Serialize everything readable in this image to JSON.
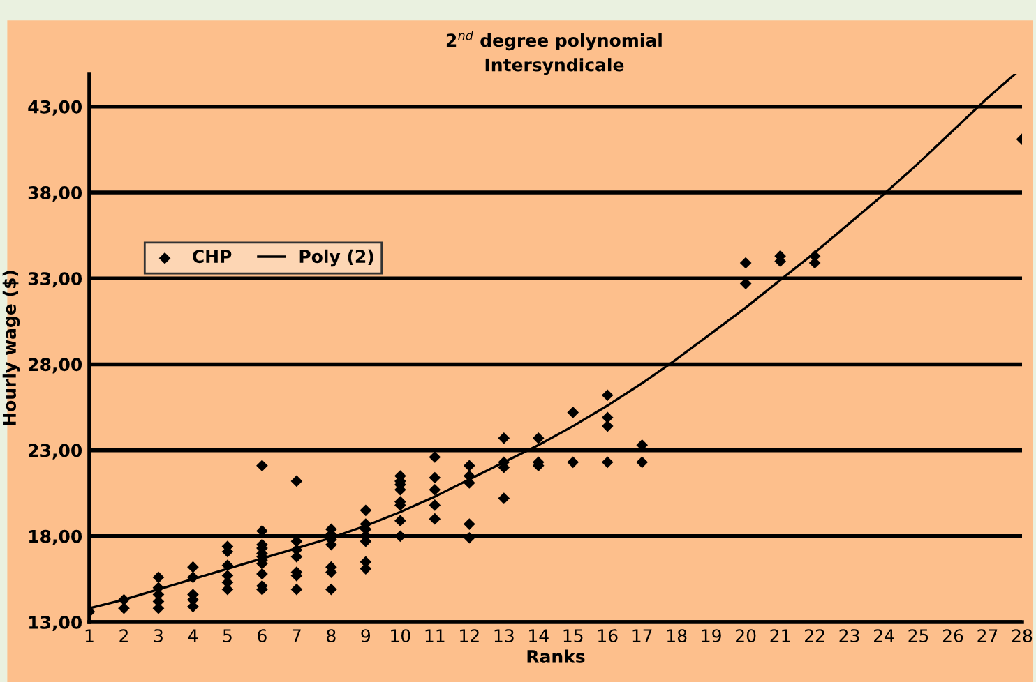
{
  "chart_data": {
    "type": "scatter",
    "title": "2$^{nd}$ degree polynomial",
    "subtitle": "Intersyndicale",
    "xlabel": "Ranks",
    "ylabel": "Hourly wage ($)",
    "xlim": [
      1,
      28
    ],
    "xticks": [
      1,
      2,
      3,
      4,
      5,
      6,
      7,
      8,
      9,
      10,
      11,
      12,
      13,
      14,
      15,
      16,
      17,
      18,
      19,
      20,
      21,
      22,
      23,
      24,
      25,
      26,
      27,
      28
    ],
    "ylim": [
      13,
      44.9
    ],
    "yticks": [
      {
        "value": 13,
        "label": "13,00"
      },
      {
        "value": 18,
        "label": "18,00"
      },
      {
        "value": 23,
        "label": "23,00"
      },
      {
        "value": 28,
        "label": "28,00"
      },
      {
        "value": 33,
        "label": "33,00"
      },
      {
        "value": 38,
        "label": "38,00"
      },
      {
        "value": 43,
        "label": "43,00"
      }
    ],
    "grid": "y",
    "legend": "left",
    "marker": "diamond",
    "series": [
      {
        "name": "CHP",
        "color": "#000000",
        "x": [
          1,
          2,
          2,
          3,
          3,
          3,
          3,
          3,
          4,
          4,
          4,
          4,
          4,
          5,
          5,
          5,
          5,
          5,
          5,
          6,
          6,
          6,
          6,
          6,
          6,
          6,
          6,
          6,
          6,
          6,
          7,
          7,
          7,
          7,
          7,
          7,
          7,
          8,
          8,
          8,
          8,
          8,
          8,
          8,
          9,
          9,
          9,
          9,
          9,
          9,
          9,
          10,
          10,
          10,
          10,
          10,
          10,
          10,
          10,
          11,
          11,
          11,
          11,
          11,
          12,
          12,
          12,
          12,
          12,
          13,
          13,
          13,
          13,
          14,
          14,
          14,
          15,
          15,
          16,
          16,
          16,
          16,
          17,
          17,
          20,
          20,
          21,
          21,
          22,
          22,
          28
        ],
        "values": [
          13.6,
          14.3,
          13.8,
          15.6,
          15.0,
          14.6,
          14.2,
          13.8,
          16.2,
          15.6,
          14.6,
          14.3,
          13.9,
          17.4,
          17.1,
          16.3,
          15.7,
          15.3,
          14.9,
          22.1,
          18.3,
          17.5,
          17.3,
          17.0,
          16.8,
          16.6,
          16.4,
          15.8,
          15.1,
          14.9,
          21.2,
          17.7,
          17.2,
          16.8,
          15.9,
          15.7,
          14.9,
          18.4,
          18.1,
          17.8,
          17.5,
          16.2,
          15.9,
          14.9,
          19.5,
          18.7,
          18.4,
          18.0,
          17.7,
          16.5,
          16.1,
          21.5,
          21.2,
          21.0,
          20.7,
          20.0,
          19.8,
          18.9,
          18.0,
          22.6,
          21.4,
          20.7,
          19.8,
          19.0,
          22.1,
          21.5,
          21.1,
          18.7,
          17.9,
          23.7,
          22.3,
          22.0,
          20.2,
          23.7,
          22.3,
          22.1,
          25.2,
          22.3,
          26.2,
          24.9,
          24.4,
          22.3,
          23.3,
          22.3,
          33.9,
          32.7,
          34.3,
          34.0,
          34.3,
          33.9,
          41.1
        ]
      },
      {
        "name": "Poly (2)",
        "type": "line",
        "color": "#000000",
        "marker": "none",
        "line_style": "solid",
        "x": [
          1,
          2,
          3,
          4,
          5,
          6,
          7,
          8,
          9,
          10,
          11,
          12,
          13,
          14,
          15,
          16,
          17,
          18,
          19,
          20,
          21,
          22,
          23,
          24,
          25,
          26,
          27,
          27.8
        ],
        "values": [
          13.8,
          14.3,
          14.9,
          15.5,
          16.1,
          16.7,
          17.3,
          17.9,
          18.6,
          19.4,
          20.3,
          21.3,
          22.3,
          23.3,
          24.4,
          25.6,
          26.9,
          28.3,
          29.8,
          31.3,
          32.9,
          34.5,
          36.2,
          37.9,
          39.7,
          41.6,
          43.5,
          44.9
        ]
      }
    ]
  }
}
